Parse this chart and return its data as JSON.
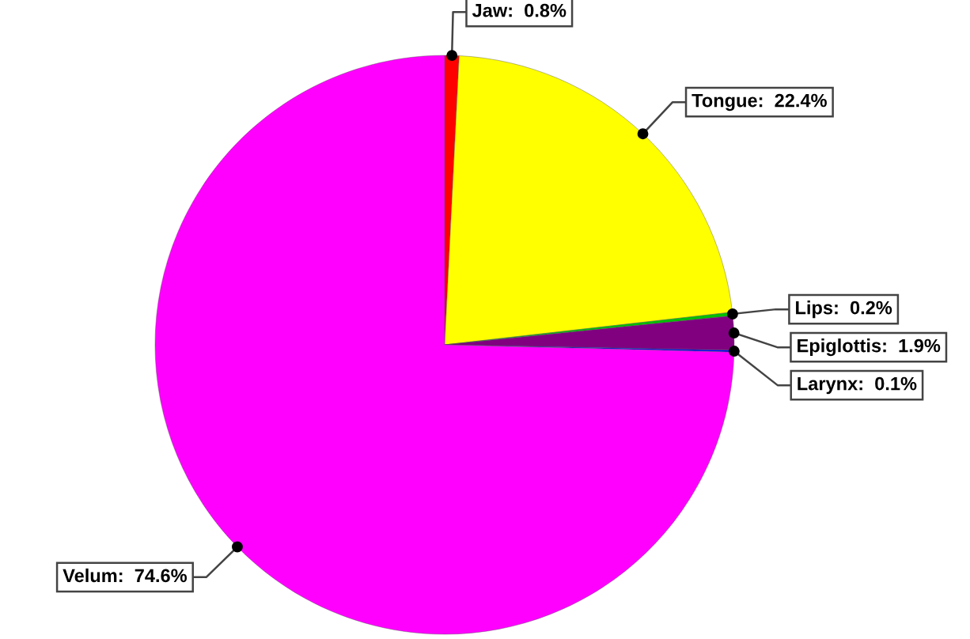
{
  "chart_data": {
    "type": "pie",
    "categories": [
      "Jaw",
      "Tongue",
      "Lips",
      "Epiglottis",
      "Larynx",
      "Velum"
    ],
    "values": [
      0.8,
      22.4,
      0.2,
      1.9,
      0.1,
      74.6
    ],
    "value_labels": [
      "0.8%",
      "22.4%",
      "0.2%",
      "1.9%",
      "0.1%",
      "74.6%"
    ],
    "colors": [
      "#ff0000",
      "#ffff00",
      "#00c000",
      "#800080",
      "#0000ff",
      "#ff00ff"
    ],
    "legend": false
  }
}
